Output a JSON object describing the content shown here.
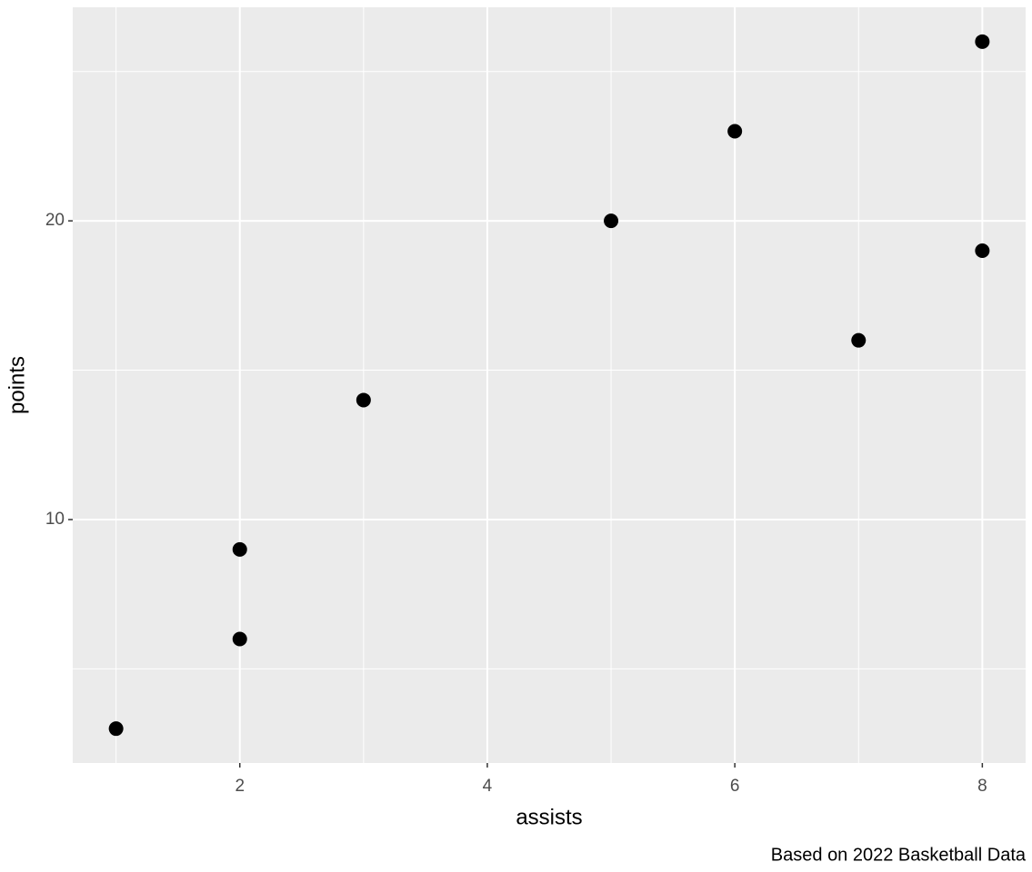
{
  "chart_data": {
    "type": "scatter",
    "x_label": "assists",
    "y_label": "points",
    "caption": "Based on 2022 Basketball Data",
    "x": [
      1,
      2,
      2,
      3,
      5,
      6,
      7,
      8,
      8
    ],
    "y": [
      3,
      6,
      9,
      14,
      20,
      23,
      16,
      19,
      26
    ],
    "color": "#000000",
    "xlim": [
      0.65,
      8.35
    ],
    "ylim": [
      1.85,
      27.15
    ],
    "xticks": [
      2,
      4,
      6,
      8
    ],
    "yticks": [
      10,
      20
    ],
    "xminor": [
      1,
      3,
      5,
      7
    ],
    "yminor": [
      5,
      15,
      25
    ],
    "grid": true
  }
}
